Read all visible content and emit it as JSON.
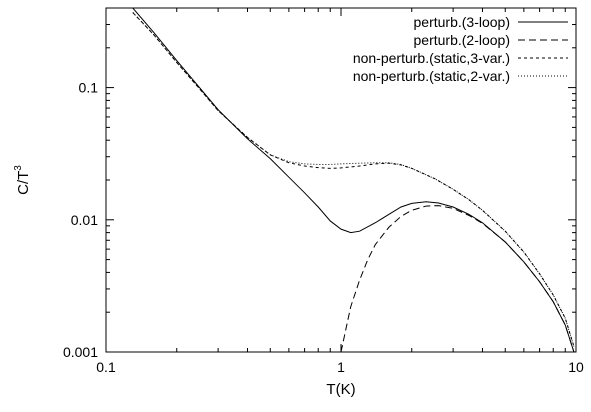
{
  "chart_data": {
    "type": "line",
    "xlabel": "T(K)",
    "ylabel": "C/T",
    "ylabel_exponent": "3",
    "x_scale": "log",
    "y_scale": "log",
    "xlim": [
      0.1,
      10
    ],
    "ylim": [
      0.001,
      0.4
    ],
    "grid": false,
    "legend_position": "top-right",
    "x_ticks": [
      {
        "value": 0.1,
        "label": "0.1"
      },
      {
        "value": 1,
        "label": "1"
      },
      {
        "value": 10,
        "label": "10"
      }
    ],
    "y_ticks": [
      {
        "value": 0.001,
        "label": "0.001"
      },
      {
        "value": 0.01,
        "label": "0.01"
      },
      {
        "value": 0.1,
        "label": "0.1"
      }
    ],
    "series": [
      {
        "name": "perturb.(3-loop)",
        "dash": "solid",
        "x": [
          0.13,
          0.16,
          0.2,
          0.25,
          0.3,
          0.4,
          0.5,
          0.6,
          0.7,
          0.8,
          0.9,
          1.0,
          1.1,
          1.2,
          1.4,
          1.6,
          1.8,
          2.0,
          2.3,
          2.6,
          3.0,
          3.5,
          4.0,
          5.0,
          6.0,
          7.0,
          8.0,
          9.0,
          9.8
        ],
        "y": [
          0.4,
          0.26,
          0.16,
          0.1,
          0.068,
          0.041,
          0.029,
          0.021,
          0.016,
          0.0125,
          0.0098,
          0.0085,
          0.008,
          0.0082,
          0.0095,
          0.011,
          0.0125,
          0.0133,
          0.0137,
          0.0134,
          0.0125,
          0.011,
          0.0095,
          0.0068,
          0.0048,
          0.0034,
          0.0024,
          0.0016,
          0.001
        ]
      },
      {
        "name": "perturb.(2-loop)",
        "dash": "dashed",
        "x": [
          1.0,
          1.05,
          1.1,
          1.2,
          1.3,
          1.4,
          1.6,
          1.8,
          2.0,
          2.3,
          2.6,
          3.0,
          3.5,
          4.0,
          5.0,
          6.0,
          7.0,
          8.0,
          9.0,
          9.8
        ],
        "y": [
          0.001,
          0.0015,
          0.0022,
          0.0035,
          0.005,
          0.0065,
          0.0088,
          0.0106,
          0.0118,
          0.0127,
          0.0128,
          0.0122,
          0.0108,
          0.0094,
          0.0068,
          0.0048,
          0.0034,
          0.0024,
          0.0016,
          0.001
        ]
      },
      {
        "name": "non-perturb.(static,3-var.)",
        "dash": "short-dashed",
        "x": [
          0.13,
          0.16,
          0.2,
          0.25,
          0.3,
          0.4,
          0.5,
          0.6,
          0.7,
          0.8,
          0.9,
          1.0,
          1.2,
          1.4,
          1.6,
          1.8,
          2.0,
          2.5,
          3.0,
          3.5,
          4.0,
          5.0,
          6.0,
          7.0,
          8.0,
          9.0,
          9.8
        ],
        "y": [
          0.37,
          0.25,
          0.155,
          0.098,
          0.067,
          0.042,
          0.031,
          0.027,
          0.0255,
          0.0248,
          0.0245,
          0.0247,
          0.0255,
          0.0265,
          0.0268,
          0.026,
          0.0245,
          0.0205,
          0.017,
          0.0142,
          0.0118,
          0.0082,
          0.0057,
          0.0039,
          0.0027,
          0.0018,
          0.0011
        ]
      },
      {
        "name": "non-perturb.(static,2-var.)",
        "dash": "dotted",
        "x": [
          0.13,
          0.16,
          0.2,
          0.25,
          0.3,
          0.4,
          0.5,
          0.6,
          0.7,
          0.8,
          0.9,
          1.0,
          1.2,
          1.4,
          1.6,
          1.8,
          2.0,
          2.5,
          3.0,
          3.5,
          4.0,
          5.0,
          6.0,
          7.0,
          8.0,
          9.0,
          9.8
        ],
        "y": [
          0.37,
          0.25,
          0.155,
          0.098,
          0.067,
          0.042,
          0.031,
          0.0275,
          0.0265,
          0.0262,
          0.0262,
          0.0265,
          0.0268,
          0.027,
          0.027,
          0.0262,
          0.0245,
          0.0205,
          0.017,
          0.0142,
          0.0118,
          0.0082,
          0.0057,
          0.0039,
          0.0027,
          0.0018,
          0.0011
        ]
      }
    ]
  }
}
